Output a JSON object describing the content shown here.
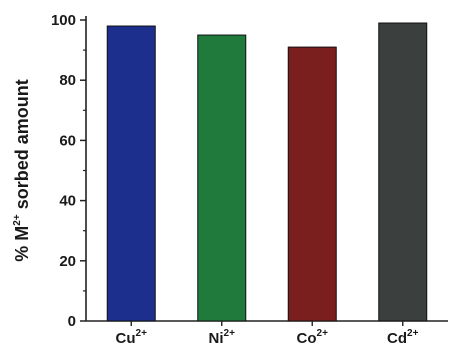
{
  "chart_data": {
    "type": "bar",
    "categories": [
      {
        "base": "Cu",
        "sup": "2+"
      },
      {
        "base": "Ni",
        "sup": "2+"
      },
      {
        "base": "Co",
        "sup": "2+"
      },
      {
        "base": "Cd",
        "sup": "2+"
      }
    ],
    "values": [
      98,
      95,
      91,
      99
    ],
    "colors": [
      "#1c2f8c",
      "#1f7a3c",
      "#7a1e1e",
      "#3b3f3e"
    ],
    "ylabel": {
      "pre": "% M",
      "sup": "2+",
      "post": " sorbed amount"
    },
    "ylim": [
      0,
      100
    ],
    "yticks": [
      0,
      20,
      40,
      60,
      80,
      100
    ],
    "grid": false
  }
}
